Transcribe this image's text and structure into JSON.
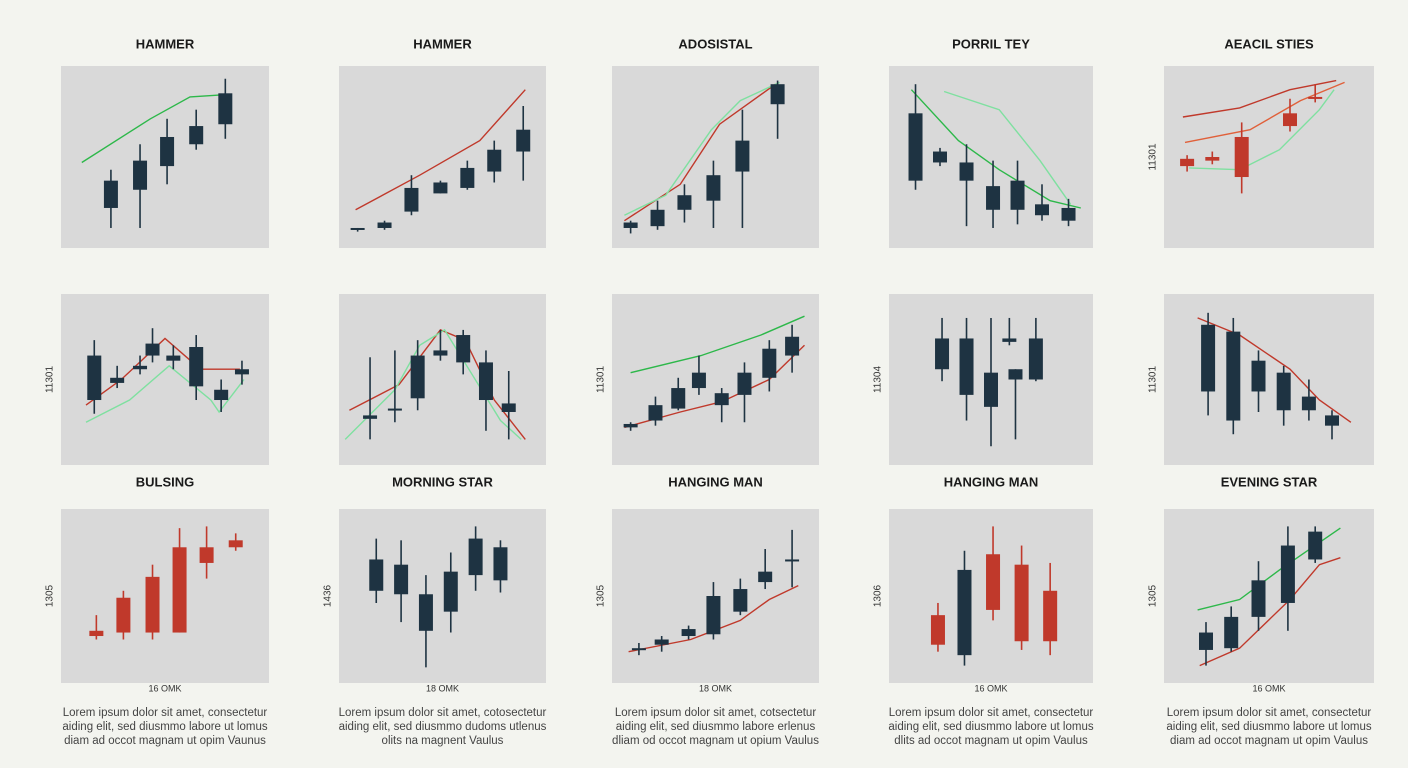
{
  "chart_data": [
    {
      "type": "candlestick",
      "title": "HAMMER",
      "xlim": [
        0,
        100
      ],
      "ylim": [
        0,
        100
      ],
      "x": [
        24,
        38,
        51,
        65,
        79
      ],
      "open": [
        22,
        32,
        45,
        57,
        68
      ],
      "high": [
        43,
        57,
        71,
        76,
        93
      ],
      "low": [
        11,
        11,
        35,
        54,
        60
      ],
      "close": [
        37,
        48,
        61,
        67,
        85
      ],
      "colors": [
        "#1e3342",
        "#1e3342",
        "#1e3342",
        "#1e3342",
        "#1e3342"
      ],
      "lines": [
        {
          "color": "#2db84a",
          "x": [
            10,
            43,
            62,
            76
          ],
          "values": [
            47,
            71,
            83,
            84
          ]
        }
      ]
    },
    {
      "type": "candlestick",
      "title": "HAMMER",
      "xlim": [
        0,
        100
      ],
      "ylim": [
        0,
        100
      ],
      "x": [
        9,
        22,
        35,
        49,
        62,
        75,
        89
      ],
      "open": [
        10,
        11,
        20,
        30,
        33,
        42,
        53
      ],
      "high": [
        11,
        15,
        40,
        37,
        48,
        59,
        78
      ],
      "low": [
        9,
        10,
        18,
        30,
        32,
        36,
        37
      ],
      "close": [
        11,
        14,
        33,
        36,
        44,
        54,
        65
      ],
      "colors": [
        "#1e3342",
        "#1e3342",
        "#1e3342",
        "#1e3342",
        "#1e3342",
        "#1e3342",
        "#1e3342"
      ],
      "lines": [
        {
          "color": "#c0392b",
          "x": [
            8,
            39,
            68,
            90
          ],
          "values": [
            21,
            40,
            59,
            87
          ]
        }
      ]
    },
    {
      "type": "candlestick",
      "title": "ADOSISTAL",
      "xlim": [
        0,
        100
      ],
      "ylim": [
        0,
        100
      ],
      "x": [
        9,
        22,
        35,
        49,
        63,
        80
      ],
      "open": [
        11,
        12,
        21,
        26,
        42,
        79
      ],
      "high": [
        15,
        26,
        35,
        48,
        76,
        92
      ],
      "low": [
        8,
        10,
        14,
        11,
        11,
        60
      ],
      "close": [
        14,
        21,
        29,
        40,
        59,
        90
      ],
      "colors": [
        "#1e3342",
        "#1e3342",
        "#1e3342",
        "#1e3342",
        "#1e3342",
        "#1e3342"
      ],
      "lines": [
        {
          "color": "#c0392b",
          "x": [
            6,
            33,
            52,
            79
          ],
          "values": [
            15,
            35,
            68,
            90
          ]
        },
        {
          "color": "#7fe0a0",
          "x": [
            6,
            26,
            48,
            62,
            81
          ],
          "values": [
            18,
            29,
            65,
            81,
            91
          ]
        }
      ]
    },
    {
      "type": "candlestick",
      "title": "PORRIL TEY",
      "xlim": [
        0,
        100
      ],
      "ylim": [
        0,
        100
      ],
      "x": [
        13,
        25,
        38,
        51,
        63,
        75,
        88
      ],
      "open": [
        37,
        53,
        47,
        34,
        37,
        24,
        22
      ],
      "high": [
        90,
        55,
        57,
        48,
        48,
        35,
        27
      ],
      "low": [
        32,
        45,
        12,
        11,
        13,
        15,
        12
      ],
      "close": [
        74,
        47,
        37,
        21,
        21,
        18,
        15
      ],
      "colors": [
        "#1e3342",
        "#1e3342",
        "#1e3342",
        "#1e3342",
        "#1e3342",
        "#1e3342",
        "#1e3342"
      ],
      "lines": [
        {
          "color": "#2db84a",
          "x": [
            11,
            34,
            54,
            79,
            94
          ],
          "values": [
            87,
            59,
            43,
            26,
            22
          ]
        },
        {
          "color": "#7fe0a0",
          "x": [
            27,
            54,
            74,
            89
          ],
          "values": [
            86,
            76,
            48,
            24
          ]
        }
      ]
    },
    {
      "type": "candlestick",
      "title": "AEACIL STIES",
      "ylabel": "11301",
      "xlim": [
        0,
        100
      ],
      "ylim": [
        0,
        100
      ],
      "x": [
        11,
        23,
        37,
        60,
        72
      ],
      "open": [
        45,
        48,
        39,
        67,
        82
      ],
      "high": [
        51,
        53,
        69,
        82,
        90
      ],
      "low": [
        42,
        46,
        30,
        64,
        80
      ],
      "close": [
        49,
        50,
        61,
        74,
        83
      ],
      "colors": [
        "#c0392b",
        "#c0392b",
        "#c0392b",
        "#c0392b",
        "#c0392b"
      ],
      "lines": [
        {
          "color": "#c0392b",
          "x": [
            9,
            36,
            60,
            82
          ],
          "values": [
            72,
            77,
            87,
            92
          ]
        },
        {
          "color": "#e0603a",
          "x": [
            10,
            41,
            65,
            86
          ],
          "values": [
            58,
            65,
            81,
            91
          ]
        },
        {
          "color": "#7fe0a0",
          "x": [
            12,
            36,
            55,
            74,
            81
          ],
          "values": [
            44,
            43,
            54,
            76,
            87
          ]
        }
      ]
    },
    {
      "type": "candlestick",
      "ylabel": "11301",
      "xlim": [
        0,
        100
      ],
      "ylim": [
        0,
        100
      ],
      "x": [
        16,
        27,
        38,
        44,
        54,
        65,
        77,
        87
      ],
      "open": [
        38,
        48,
        56,
        64,
        61,
        46,
        38,
        53
      ],
      "high": [
        73,
        58,
        64,
        80,
        70,
        76,
        50,
        61
      ],
      "low": [
        30,
        45,
        53,
        60,
        56,
        38,
        31,
        47
      ],
      "close": [
        64,
        51,
        58,
        71,
        64,
        69,
        44,
        56
      ],
      "colors": [
        "#1e3342",
        "#1e3342",
        "#1e3342",
        "#1e3342",
        "#1e3342",
        "#1e3342",
        "#1e3342",
        "#1e3342"
      ],
      "lines": [
        {
          "color": "#c0392b",
          "x": [
            12,
            29,
            50,
            67,
            86
          ],
          "values": [
            35,
            50,
            74,
            56,
            56
          ]
        },
        {
          "color": "#7fe0a0",
          "x": [
            12,
            33,
            52,
            72,
            76,
            88
          ],
          "values": [
            25,
            38,
            58,
            38,
            31,
            50
          ]
        }
      ]
    },
    {
      "type": "candlestick",
      "xlim": [
        0,
        100
      ],
      "ylim": [
        0,
        100
      ],
      "x": [
        15,
        27,
        38,
        49,
        60,
        71,
        82
      ],
      "open": [
        27,
        32,
        39,
        64,
        60,
        38,
        31
      ],
      "high": [
        63,
        67,
        73,
        79,
        79,
        67,
        55
      ],
      "low": [
        15,
        25,
        32,
        61,
        53,
        20,
        15
      ],
      "close": [
        29,
        33,
        64,
        67,
        76,
        60,
        36
      ],
      "colors": [
        "#1e3342",
        "#1e3342",
        "#1e3342",
        "#1e3342",
        "#1e3342",
        "#1e3342",
        "#1e3342"
      ],
      "lines": [
        {
          "color": "#c0392b",
          "x": [
            5,
            29,
            49,
            61,
            75,
            90
          ],
          "values": [
            32,
            47,
            79,
            73,
            38,
            15
          ]
        },
        {
          "color": "#7fe0a0",
          "x": [
            3,
            27,
            39,
            51,
            78,
            88
          ],
          "values": [
            15,
            44,
            70,
            79,
            26,
            15
          ]
        }
      ]
    },
    {
      "type": "candlestick",
      "ylabel": "11301",
      "xlim": [
        0,
        100
      ],
      "ylim": [
        0,
        100
      ],
      "x": [
        9,
        21,
        32,
        42,
        53,
        64,
        76,
        87
      ],
      "open": [
        22,
        26,
        33,
        45,
        35,
        41,
        51,
        64
      ],
      "high": [
        25,
        40,
        51,
        64,
        45,
        60,
        73,
        82
      ],
      "low": [
        20,
        23,
        32,
        41,
        25,
        25,
        43,
        54
      ],
      "close": [
        24,
        35,
        45,
        54,
        42,
        54,
        68,
        75
      ],
      "colors": [
        "#1e3342",
        "#1e3342",
        "#1e3342",
        "#1e3342",
        "#1e3342",
        "#1e3342",
        "#1e3342",
        "#1e3342"
      ],
      "lines": [
        {
          "color": "#2db84a",
          "x": [
            9,
            43,
            72,
            93
          ],
          "values": [
            54,
            64,
            76,
            87
          ]
        },
        {
          "color": "#c0392b",
          "x": [
            6,
            33,
            53,
            76,
            93
          ],
          "values": [
            22,
            31,
            37,
            50,
            70
          ]
        }
      ]
    },
    {
      "type": "candlestick",
      "ylabel": "11304",
      "xlim": [
        0,
        100
      ],
      "ylim": [
        0,
        100
      ],
      "x": [
        26,
        38,
        50,
        59,
        62,
        72
      ],
      "open": [
        56,
        41,
        34,
        72,
        50,
        50
      ],
      "high": [
        86,
        86,
        86,
        86,
        56,
        86
      ],
      "low": [
        49,
        26,
        11,
        70,
        15,
        49
      ],
      "close": [
        74,
        74,
        54,
        74,
        56,
        74
      ],
      "colors": [
        "#1e3342",
        "#1e3342",
        "#1e3342",
        "#1e3342",
        "#1e3342",
        "#1e3342"
      ],
      "lines": []
    },
    {
      "type": "candlestick",
      "ylabel": "11301",
      "xlim": [
        0,
        100
      ],
      "ylim": [
        0,
        100
      ],
      "x": [
        21,
        33,
        45,
        57,
        69,
        80
      ],
      "open": [
        43,
        26,
        43,
        32,
        32,
        23
      ],
      "high": [
        89,
        86,
        67,
        58,
        50,
        32
      ],
      "low": [
        29,
        18,
        31,
        23,
        26,
        15
      ],
      "close": [
        82,
        78,
        61,
        54,
        40,
        29
      ],
      "colors": [
        "#1e3342",
        "#1e3342",
        "#1e3342",
        "#1e3342",
        "#1e3342",
        "#1e3342"
      ],
      "lines": [
        {
          "color": "#c0392b",
          "x": [
            16,
            36,
            60,
            74,
            89
          ],
          "values": [
            86,
            76,
            56,
            38,
            25
          ]
        }
      ]
    },
    {
      "type": "candlestick",
      "title": "BULSING",
      "ylabel": "1305",
      "xlabel": "16 OMK",
      "caption": [
        "Lorem ipsum dolor sit amet, consectetur",
        "aiding elit, sed diusmmo labore ut lomus",
        "diam ad occot magnam ut opim Vaunus"
      ],
      "xlim": [
        0,
        100
      ],
      "ylim": [
        0,
        100
      ],
      "x": [
        17,
        30,
        44,
        57,
        70,
        84
      ],
      "open": [
        27,
        29,
        29,
        29,
        69,
        78
      ],
      "high": [
        39,
        53,
        68,
        89,
        90,
        86
      ],
      "low": [
        25,
        25,
        25,
        29,
        60,
        76
      ],
      "close": [
        30,
        49,
        61,
        78,
        78,
        82
      ],
      "colors": [
        "#c0392b",
        "#c0392b",
        "#c0392b",
        "#c0392b",
        "#c0392b",
        "#c0392b"
      ],
      "lines": []
    },
    {
      "type": "candlestick",
      "title": "MORNING STAR",
      "ylabel": "1436",
      "xlabel": "18 OMK",
      "caption": [
        "Lorem ipsum dolor sit amet, cotosectetur",
        "aiding elit, sed diusmmo dudoms utlenus",
        "olits na magnent Vaulus"
      ],
      "xlim": [
        0,
        100
      ],
      "ylim": [
        0,
        100
      ],
      "x": [
        18,
        30,
        42,
        54,
        66,
        78
      ],
      "open": [
        53,
        51,
        30,
        41,
        62,
        59
      ],
      "high": [
        83,
        82,
        62,
        75,
        90,
        82
      ],
      "low": [
        46,
        35,
        9,
        29,
        53,
        52
      ],
      "close": [
        71,
        68,
        51,
        64,
        83,
        78
      ],
      "colors": [
        "#1e3342",
        "#1e3342",
        "#1e3342",
        "#1e3342",
        "#1e3342",
        "#1e3342"
      ],
      "lines": []
    },
    {
      "type": "candlestick",
      "title": "HANGING MAN",
      "ylabel": "1305",
      "xlabel": "18 OMK",
      "caption": [
        "Lorem ipsum dolor sit amet, cotsectetur",
        "aiding elit, sed diusmmo labore erlenus",
        "dliam od occot magnam ut opium Vaulus"
      ],
      "xlim": [
        0,
        100
      ],
      "ylim": [
        0,
        100
      ],
      "x": [
        13,
        24,
        37,
        49,
        62,
        74,
        87
      ],
      "open": [
        19,
        22,
        27,
        28,
        41,
        58,
        70
      ],
      "high": [
        23,
        27,
        33,
        58,
        60,
        77,
        88
      ],
      "low": [
        16,
        18,
        25,
        25,
        39,
        54,
        55
      ],
      "close": [
        20,
        25,
        31,
        50,
        54,
        64,
        71
      ],
      "colors": [
        "#1e3342",
        "#1e3342",
        "#1e3342",
        "#1e3342",
        "#1e3342",
        "#1e3342",
        "#1e3342"
      ],
      "lines": [
        {
          "color": "#c0392b",
          "x": [
            8,
            38,
            62,
            76,
            90
          ],
          "values": [
            18,
            25,
            36,
            48,
            56
          ]
        }
      ]
    },
    {
      "type": "candlestick",
      "title": "HANGING MAN",
      "ylabel": "1306",
      "xlabel": "16 OMK",
      "caption": [
        "Lorem ipsum dolor sit amet, consectetur",
        "aiding elit, sed diusmmo labore ut lomus",
        "dlits ad occot magnam ut opim Vaulus"
      ],
      "xlim": [
        0,
        100
      ],
      "ylim": [
        0,
        100
      ],
      "x": [
        24,
        37,
        51,
        65,
        79
      ],
      "open": [
        22,
        16,
        42,
        24,
        24
      ],
      "high": [
        46,
        76,
        90,
        79,
        69
      ],
      "low": [
        18,
        10,
        36,
        19,
        16
      ],
      "close": [
        39,
        65,
        74,
        68,
        53
      ],
      "colors": [
        "#c0392b",
        "#1e3342",
        "#c0392b",
        "#c0392b",
        "#c0392b"
      ],
      "lines": []
    },
    {
      "type": "candlestick",
      "title": "EVENING STAR",
      "ylabel": "1305",
      "xlabel": "16 OMK",
      "caption": [
        "Lorem ipsum dolor sit amet, consectetur",
        "aiding elit, sed diusmmo labore ut lomus",
        "diam ad occot magnam ut opim Vaulus"
      ],
      "xlim": [
        0,
        100
      ],
      "ylim": [
        0,
        100
      ],
      "x": [
        20,
        32,
        45,
        59,
        72
      ],
      "open": [
        19,
        20,
        38,
        46,
        71
      ],
      "high": [
        35,
        44,
        70,
        90,
        90
      ],
      "low": [
        10,
        18,
        30,
        30,
        69
      ],
      "close": [
        29,
        38,
        59,
        79,
        87
      ],
      "colors": [
        "#1e3342",
        "#1e3342",
        "#1e3342",
        "#1e3342",
        "#1e3342"
      ],
      "lines": [
        {
          "color": "#2db84a",
          "x": [
            16,
            36,
            55,
            84
          ],
          "values": [
            42,
            48,
            65,
            89
          ]
        },
        {
          "color": "#c0392b",
          "x": [
            17,
            36,
            60,
            74,
            84
          ],
          "values": [
            10,
            20,
            48,
            68,
            72
          ]
        }
      ]
    }
  ]
}
